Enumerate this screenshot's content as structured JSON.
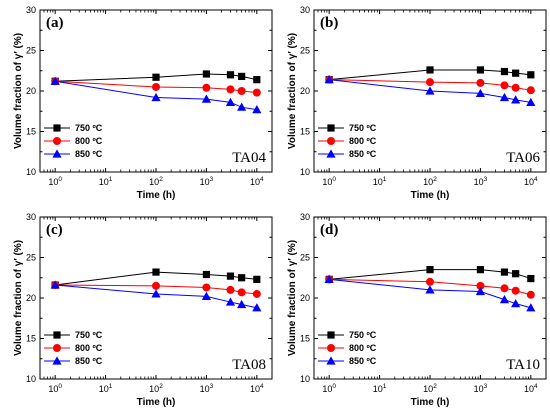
{
  "chart_data": [
    {
      "type": "line",
      "panel_label": "(a)",
      "sample_label": "TA04",
      "xlabel": "Time (h)",
      "ylabel": "Volume fraction of γ′ (%)",
      "xscale": "log",
      "xlim": [
        0.5,
        20000
      ],
      "ylim": [
        10,
        30
      ],
      "x_ticks": [
        1,
        10,
        100,
        1000,
        10000
      ],
      "x_tick_labels": [
        {
          "base": "10",
          "exp": "0"
        },
        {
          "base": "10",
          "exp": "1"
        },
        {
          "base": "10",
          "exp": "2"
        },
        {
          "base": "10",
          "exp": "3"
        },
        {
          "base": "10",
          "exp": "4"
        }
      ],
      "y_ticks": [
        10,
        15,
        20,
        25,
        30
      ],
      "y_tick_labels": [
        "10",
        "15",
        "20",
        "25",
        "30"
      ],
      "legend_position": "bottom-left",
      "x": [
        1,
        100,
        1000,
        3000,
        5000,
        10000
      ],
      "series": [
        {
          "name": "750 ºC",
          "color": "#000000",
          "marker": "square",
          "values": [
            21.2,
            21.7,
            22.1,
            22.0,
            21.8,
            21.4
          ]
        },
        {
          "name": "800 ºC",
          "color": "#ff0000",
          "marker": "circle",
          "values": [
            21.2,
            20.5,
            20.4,
            20.2,
            20.0,
            19.8
          ]
        },
        {
          "name": "850 ºC",
          "color": "#0000ff",
          "marker": "triangle",
          "values": [
            21.2,
            19.2,
            19.0,
            18.6,
            18.0,
            17.7
          ]
        }
      ]
    },
    {
      "type": "line",
      "panel_label": "(b)",
      "sample_label": "TA06",
      "xlabel": "Time (h)",
      "ylabel": "Volume fraction of γ′ (%)",
      "xscale": "log",
      "xlim": [
        0.5,
        20000
      ],
      "ylim": [
        10,
        30
      ],
      "x_ticks": [
        1,
        10,
        100,
        1000,
        10000
      ],
      "x_tick_labels": [
        {
          "base": "10",
          "exp": "0"
        },
        {
          "base": "10",
          "exp": "1"
        },
        {
          "base": "10",
          "exp": "2"
        },
        {
          "base": "10",
          "exp": "3"
        },
        {
          "base": "10",
          "exp": "4"
        }
      ],
      "y_ticks": [
        10,
        15,
        20,
        25,
        30
      ],
      "y_tick_labels": [
        "10",
        "15",
        "20",
        "25",
        "30"
      ],
      "legend_position": "bottom-left",
      "x": [
        1,
        100,
        1000,
        3000,
        5000,
        10000
      ],
      "series": [
        {
          "name": "750 ºC",
          "color": "#000000",
          "marker": "square",
          "values": [
            21.4,
            22.6,
            22.6,
            22.4,
            22.2,
            22.0
          ]
        },
        {
          "name": "800 ºC",
          "color": "#ff0000",
          "marker": "circle",
          "values": [
            21.4,
            21.1,
            21.0,
            20.7,
            20.4,
            20.1
          ]
        },
        {
          "name": "850 ºC",
          "color": "#0000ff",
          "marker": "triangle",
          "values": [
            21.4,
            20.0,
            19.7,
            19.2,
            18.9,
            18.6
          ]
        }
      ]
    },
    {
      "type": "line",
      "panel_label": "(c)",
      "sample_label": "TA08",
      "xlabel": "Time (h)",
      "ylabel": "Volume fraction of γ′ (%)",
      "xscale": "log",
      "xlim": [
        0.5,
        20000
      ],
      "ylim": [
        10,
        30
      ],
      "x_ticks": [
        1,
        10,
        100,
        1000,
        10000
      ],
      "x_tick_labels": [
        {
          "base": "10",
          "exp": "0"
        },
        {
          "base": "10",
          "exp": "1"
        },
        {
          "base": "10",
          "exp": "2"
        },
        {
          "base": "10",
          "exp": "3"
        },
        {
          "base": "10",
          "exp": "4"
        }
      ],
      "y_ticks": [
        10,
        15,
        20,
        25,
        30
      ],
      "y_tick_labels": [
        "10",
        "15",
        "20",
        "25",
        "30"
      ],
      "legend_position": "bottom-left",
      "x": [
        1,
        100,
        1000,
        3000,
        5000,
        10000
      ],
      "series": [
        {
          "name": "750 ºC",
          "color": "#000000",
          "marker": "square",
          "values": [
            21.6,
            23.2,
            22.9,
            22.7,
            22.5,
            22.3
          ]
        },
        {
          "name": "800 ºC",
          "color": "#ff0000",
          "marker": "circle",
          "values": [
            21.6,
            21.5,
            21.3,
            21.0,
            20.7,
            20.5
          ]
        },
        {
          "name": "850 ºC",
          "color": "#0000ff",
          "marker": "triangle",
          "values": [
            21.6,
            20.5,
            20.2,
            19.5,
            19.2,
            18.8
          ]
        }
      ]
    },
    {
      "type": "line",
      "panel_label": "(d)",
      "sample_label": "TA10",
      "xlabel": "Time (h)",
      "ylabel": "Volume fraction of γ′ (%)",
      "xscale": "log",
      "xlim": [
        0.5,
        20000
      ],
      "ylim": [
        10,
        30
      ],
      "x_ticks": [
        1,
        10,
        100,
        1000,
        10000
      ],
      "x_tick_labels": [
        {
          "base": "10",
          "exp": "0"
        },
        {
          "base": "10",
          "exp": "1"
        },
        {
          "base": "10",
          "exp": "2"
        },
        {
          "base": "10",
          "exp": "3"
        },
        {
          "base": "10",
          "exp": "4"
        }
      ],
      "y_ticks": [
        10,
        15,
        20,
        25,
        30
      ],
      "y_tick_labels": [
        "10",
        "15",
        "20",
        "25",
        "30"
      ],
      "legend_position": "bottom-left",
      "x": [
        1,
        100,
        1000,
        3000,
        5000,
        10000
      ],
      "series": [
        {
          "name": "750 ºC",
          "color": "#000000",
          "marker": "square",
          "values": [
            22.3,
            23.5,
            23.5,
            23.2,
            23.0,
            22.4
          ]
        },
        {
          "name": "800 ºC",
          "color": "#ff0000",
          "marker": "circle",
          "values": [
            22.3,
            22.0,
            21.5,
            21.2,
            20.9,
            20.4
          ]
        },
        {
          "name": "850 ºC",
          "color": "#0000ff",
          "marker": "triangle",
          "values": [
            22.3,
            21.0,
            20.8,
            19.8,
            19.3,
            18.8
          ]
        }
      ]
    }
  ]
}
